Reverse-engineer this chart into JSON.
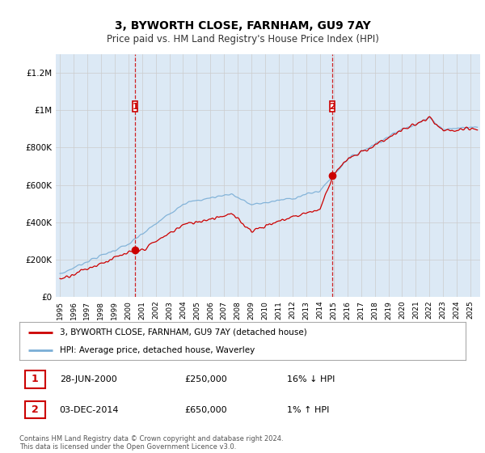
{
  "title": "3, BYWORTH CLOSE, FARNHAM, GU9 7AY",
  "subtitle": "Price paid vs. HM Land Registry's House Price Index (HPI)",
  "background_color": "#dce9f5",
  "outer_bg_color": "#ffffff",
  "red_line_color": "#cc0000",
  "blue_line_color": "#7aaed6",
  "transaction1": {
    "date": "28-JUN-2000",
    "price": 250000,
    "hpi_diff": "16% ↓ HPI",
    "year": 2000.5
  },
  "transaction2": {
    "date": "03-DEC-2014",
    "price": 650000,
    "hpi_diff": "1% ↑ HPI",
    "year": 2014.92
  },
  "legend_label_red": "3, BYWORTH CLOSE, FARNHAM, GU9 7AY (detached house)",
  "legend_label_blue": "HPI: Average price, detached house, Waverley",
  "footer": "Contains HM Land Registry data © Crown copyright and database right 2024.\nThis data is licensed under the Open Government Licence v3.0.",
  "ylim": [
    0,
    1300000
  ],
  "xlim_start": 1994.7,
  "xlim_end": 2025.7
}
